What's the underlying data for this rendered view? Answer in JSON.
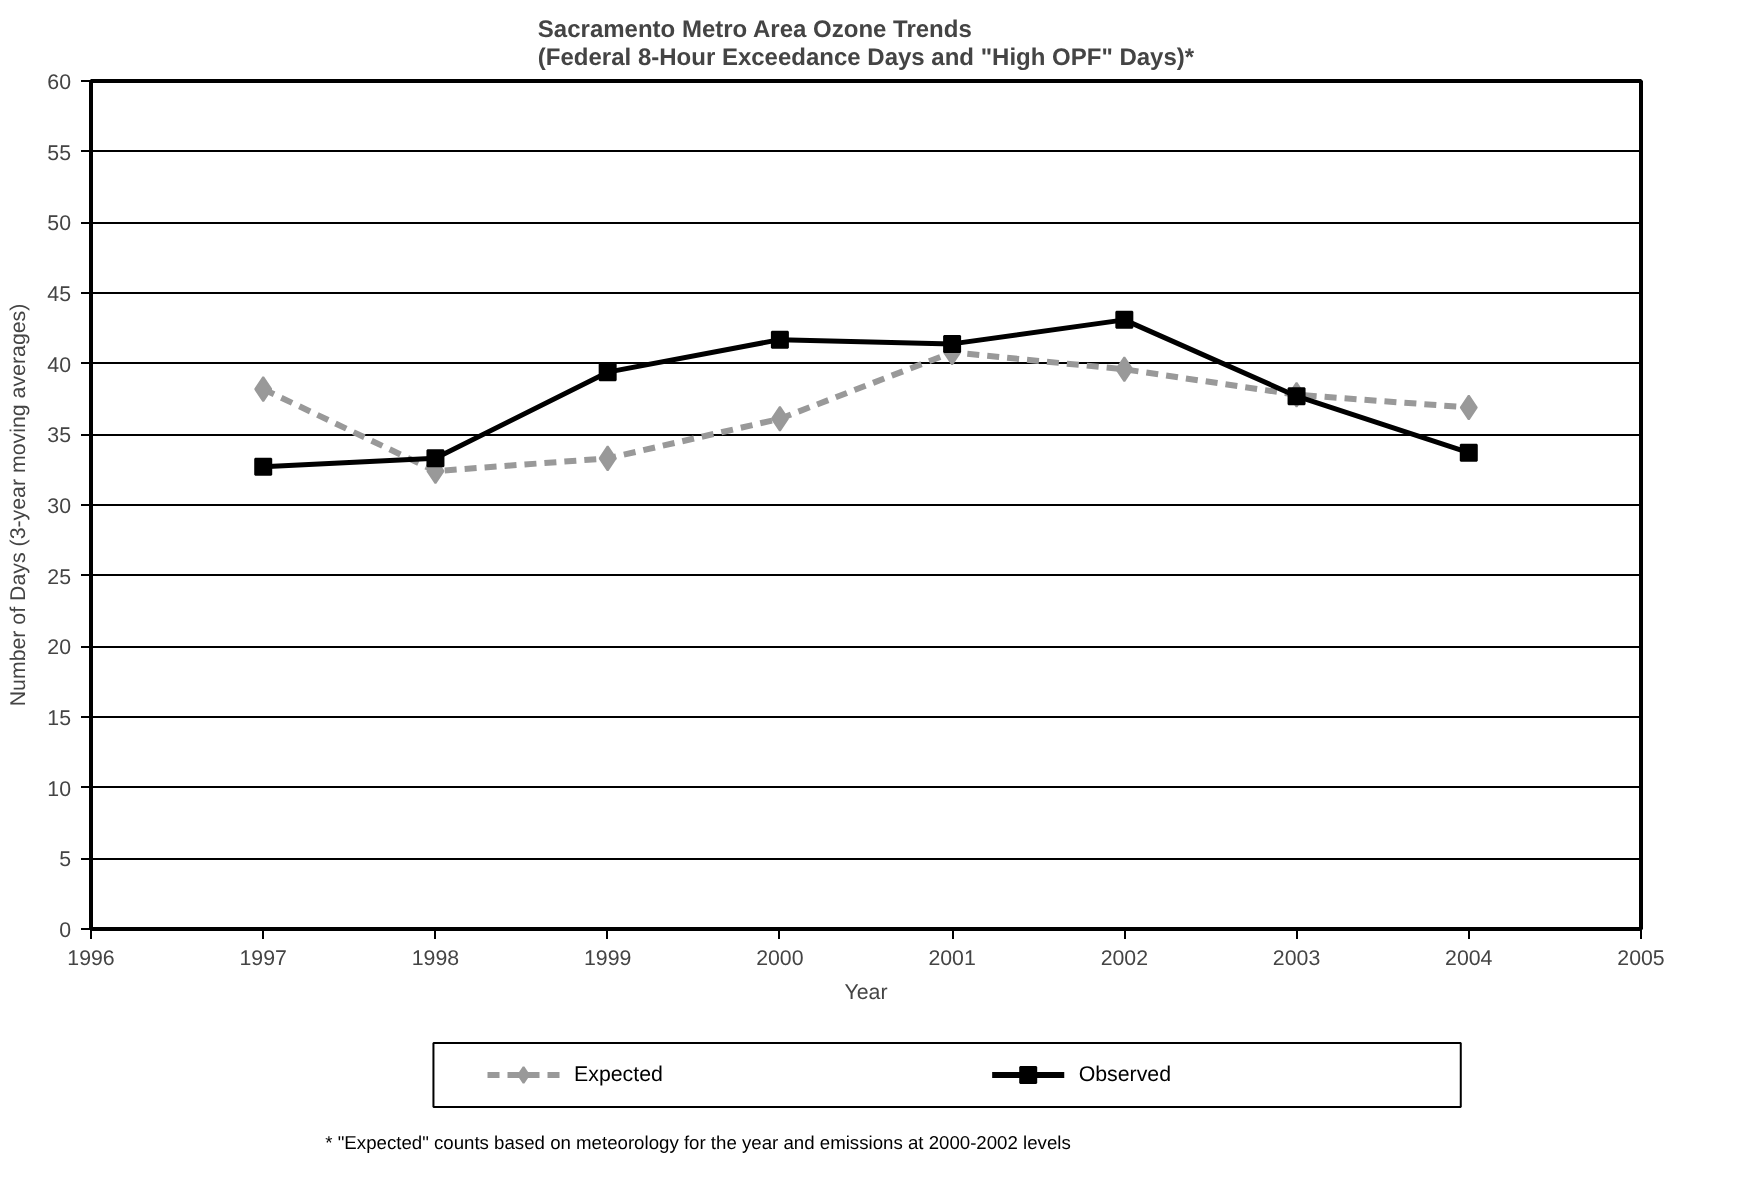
{
  "chart_data": {
    "type": "line",
    "title": "Sacramento Metro Area Ozone Trends\n(Federal 8-Hour Exceedance Days and \"High OPF\" Days)*",
    "xlabel": "Year",
    "ylabel": "Number of Days (3-year moving averages)",
    "x": [
      1997,
      1998,
      1999,
      2000,
      2001,
      2002,
      2003,
      2004
    ],
    "series": [
      {
        "name": "Expected",
        "color": "#999999",
        "marker": "diamond",
        "line_style": "dashed",
        "values": [
          38.2,
          32.4,
          33.3,
          36.1,
          40.8,
          39.6,
          37.8,
          36.9
        ]
      },
      {
        "name": "Observed",
        "color": "#000000",
        "marker": "square",
        "line_style": "solid",
        "values": [
          32.7,
          33.3,
          39.4,
          41.7,
          41.4,
          43.1,
          37.7,
          33.7
        ]
      }
    ],
    "xlim": [
      1996,
      2005
    ],
    "xticks": [
      1996,
      1997,
      1998,
      1999,
      2000,
      2001,
      2002,
      2003,
      2004,
      2005
    ],
    "ylim": [
      0,
      60
    ],
    "yticks": [
      0,
      5,
      10,
      15,
      20,
      25,
      30,
      35,
      40,
      45,
      50,
      55,
      60
    ],
    "grid": "y",
    "legend": "bottom",
    "annotations": [
      "* \"Expected\" counts based on meteorology for the  year and emissions at 2000-2002 levels"
    ]
  }
}
